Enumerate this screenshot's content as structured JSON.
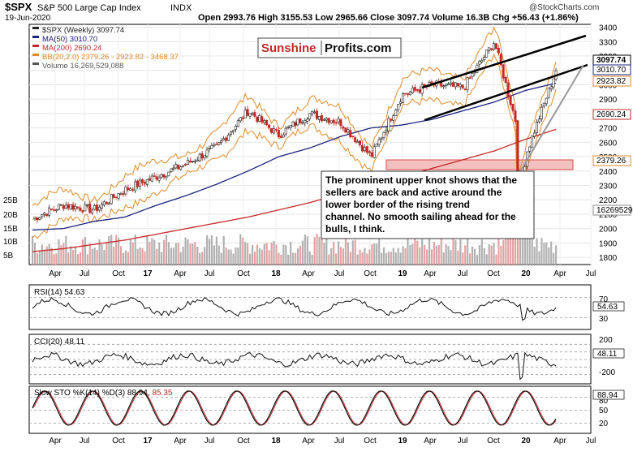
{
  "header": {
    "symbol": "$SPX",
    "name": "S&P 500 Large Cap Index",
    "exchange": "INDX",
    "date": "19-Jun-2020",
    "ohlc_line": "Open 2993.76  High 3155.53  Low 2965.66  Close 3097.74  Volume 16.3B  Chg +56.43 (+1.86%)",
    "stamp": "@StockCharts.com",
    "arrow": "▲"
  },
  "logo": {
    "word1": "Sunshine",
    "word2": "Profits.com"
  },
  "legend": [
    {
      "text": "$SPX (Weekly) 3097.74",
      "color": "#222222"
    },
    {
      "text": "MA(50) 3010.70",
      "color": "#1a237e"
    },
    {
      "text": "MA(200) 2690.24",
      "color": "#c62828"
    },
    {
      "text": "BB(20,2.0) 2379.26 - 2923.82 - 3468.37",
      "color": "#e08a2a"
    },
    {
      "text": "Volume 16,269,529,088",
      "color": "#555555"
    }
  ],
  "annotation": "The prominent upper knot shows that the sellers are back and active around the lower border of the rising trend channel. No smooth sailing ahead for the bulls, I think.",
  "price_axis": [
    "3400",
    "3300",
    "3200",
    "3100",
    "3000",
    "2900",
    "2800",
    "2700",
    "2600",
    "2500",
    "2400",
    "2300",
    "2200",
    "2100",
    "2000",
    "1900",
    "1800"
  ],
  "price_tags": [
    {
      "text": "3097.74",
      "bg": "#ffffff",
      "fg": "#000000",
      "border": "#000000"
    },
    {
      "text": "3010.70",
      "bg": "#ffffff",
      "fg": "#000000",
      "border": "#1a237e"
    },
    {
      "text": "2923.82",
      "bg": "#ffffff",
      "fg": "#000000",
      "border": "#e08a2a"
    },
    {
      "text": "2690.24",
      "bg": "#ffffff",
      "fg": "#000000",
      "border": "#c62828"
    },
    {
      "text": "2379.26",
      "bg": "#ffffff",
      "fg": "#000000",
      "border": "#e08a2a"
    },
    {
      "text": "16269529088",
      "bg": "#ffffff",
      "fg": "#000000",
      "border": "#888888"
    }
  ],
  "volume_axis": [
    "25B",
    "20B",
    "15B",
    "10B",
    "5B"
  ],
  "x_labels": [
    "Apr",
    "Jul",
    "Oct",
    "17",
    "Apr",
    "Jul",
    "Oct",
    "18",
    "Apr",
    "Jul",
    "Oct",
    "19",
    "Apr",
    "Jul",
    "Oct",
    "20",
    "Apr",
    "Jul"
  ],
  "rsi": {
    "label": "RSI(14) 54.63",
    "tag": "54.63",
    "axis": [
      "70",
      "30"
    ]
  },
  "cci": {
    "label": "CCI(20) 48.11",
    "tag": "48.11",
    "axis": [
      "200",
      "-200"
    ]
  },
  "sto": {
    "label_prefix": "Slow STO %K(14) %D(3) 88.94,",
    "label_d": "85.35",
    "tag": "88.94",
    "axis": [
      "80",
      "50",
      "20"
    ]
  },
  "colors": {
    "up": "#1b5e20",
    "down": "#c62828",
    "ma50": "#1a237e",
    "ma200": "#c62828",
    "bb": "#e08a2a",
    "zone": "#f4b6b6",
    "zone_border": "#d32f2f"
  },
  "chart_data": {
    "type": "line",
    "title": "$SPX S&P 500 Large Cap Index INDX",
    "x": [
      "2016-04",
      "2016-07",
      "2016-10",
      "2017-01",
      "2017-04",
      "2017-07",
      "2017-10",
      "2018-01",
      "2018-04",
      "2018-07",
      "2018-10",
      "2019-01",
      "2019-04",
      "2019-07",
      "2019-10",
      "2020-01",
      "2020-04",
      "2020-06"
    ],
    "series": [
      {
        "name": "$SPX (Weekly)",
        "values": [
          2070,
          2165,
          2130,
          2270,
          2360,
          2450,
          2570,
          2820,
          2650,
          2800,
          2740,
          2500,
          2930,
          3000,
          2980,
          3300,
          2500,
          3098
        ]
      },
      {
        "name": "MA(50)",
        "values": [
          1990,
          2000,
          2050,
          2080,
          2160,
          2230,
          2310,
          2400,
          2500,
          2560,
          2640,
          2700,
          2720,
          2760,
          2820,
          2880,
          2960,
          3011
        ]
      },
      {
        "name": "MA(200)",
        "values": [
          1840,
          1860,
          1890,
          1920,
          1960,
          2000,
          2040,
          2080,
          2130,
          2180,
          2240,
          2300,
          2360,
          2420,
          2480,
          2540,
          2620,
          2690
        ]
      }
    ],
    "ylim": [
      1750,
      3420
    ],
    "xlabel": "",
    "ylabel": ""
  }
}
